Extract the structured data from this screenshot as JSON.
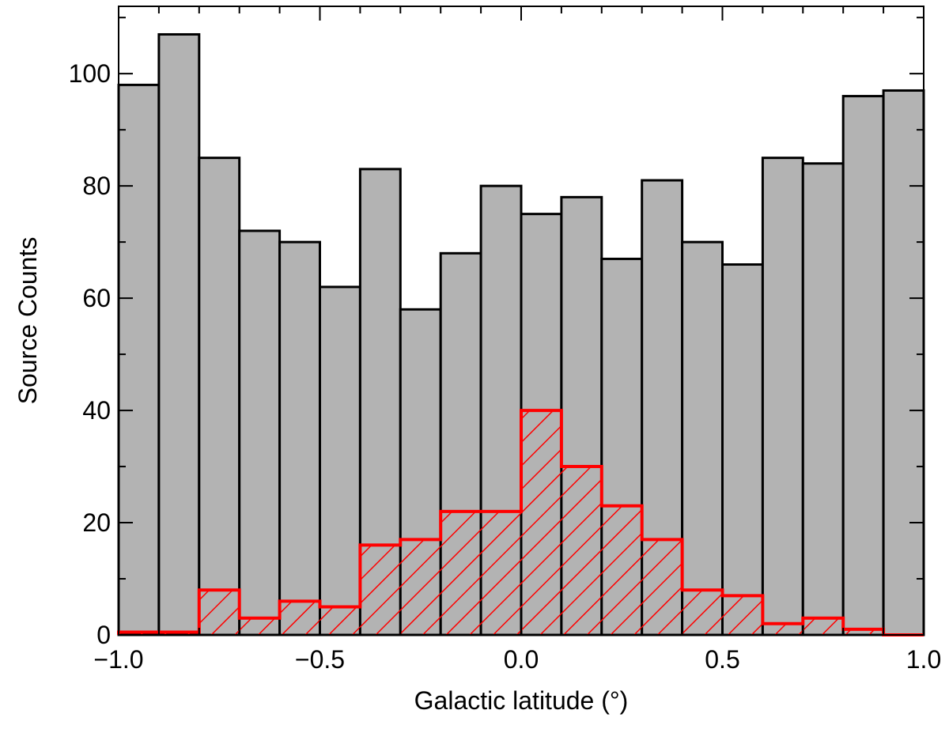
{
  "chart_data": {
    "type": "bar",
    "xlabel": "Galactic latitude (°)",
    "ylabel": "Source Counts",
    "xlim": [
      -1.0,
      1.0
    ],
    "ylim": [
      0,
      112
    ],
    "bin_edges": [
      -1.0,
      -0.9,
      -0.8,
      -0.7,
      -0.6,
      -0.5,
      -0.4,
      -0.3,
      -0.2,
      -0.1,
      0.0,
      0.1,
      0.2,
      0.3,
      0.4,
      0.5,
      0.6,
      0.7,
      0.8,
      0.9,
      1.0
    ],
    "series": [
      {
        "style": "filled-gray",
        "color": "#b3b3b3",
        "edge_color": "#000000",
        "values": [
          98,
          107,
          85,
          72,
          70,
          62,
          83,
          58,
          68,
          80,
          75,
          78,
          67,
          81,
          70,
          66,
          85,
          84,
          96,
          97
        ]
      },
      {
        "style": "red-hatched",
        "color": "#ff0000",
        "values": [
          0.5,
          0.5,
          8,
          3,
          6,
          5,
          16,
          17,
          22,
          22,
          40,
          30,
          23,
          17,
          8,
          7,
          2,
          3,
          1,
          0
        ]
      }
    ],
    "xticks": [
      {
        "value": -1.0,
        "label": "−1.0"
      },
      {
        "value": -0.5,
        "label": "−0.5"
      },
      {
        "value": 0.0,
        "label": "0.0"
      },
      {
        "value": 0.5,
        "label": "0.5"
      },
      {
        "value": 1.0,
        "label": "1.0"
      }
    ],
    "xminor": [
      -0.9,
      -0.8,
      -0.7,
      -0.6,
      -0.4,
      -0.3,
      -0.2,
      -0.1,
      0.1,
      0.2,
      0.3,
      0.4,
      0.6,
      0.7,
      0.8,
      0.9
    ],
    "yticks": [
      {
        "value": 0,
        "label": "0"
      },
      {
        "value": 20,
        "label": "20"
      },
      {
        "value": 40,
        "label": "40"
      },
      {
        "value": 60,
        "label": "60"
      },
      {
        "value": 80,
        "label": "80"
      },
      {
        "value": 100,
        "label": "100"
      }
    ],
    "yminor": [
      10,
      30,
      50,
      70,
      90,
      110
    ],
    "grid": false,
    "legend": "none"
  }
}
